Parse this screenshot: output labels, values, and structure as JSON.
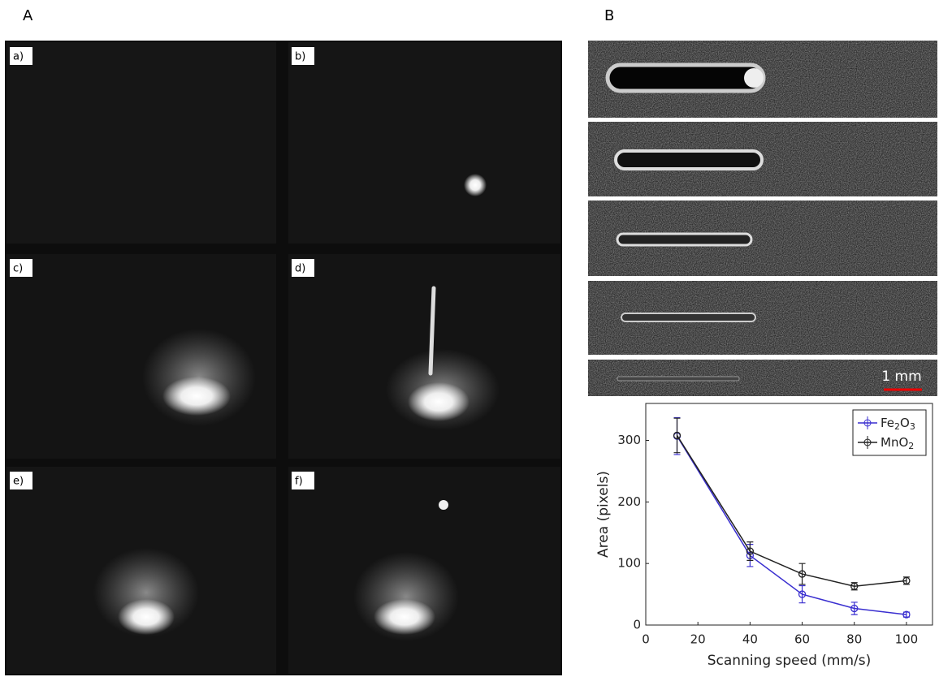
{
  "panel_labels": {
    "a": "A",
    "b": "B"
  },
  "photo_labels": [
    "a)",
    "b)",
    "c)",
    "d)",
    "e)",
    "f)"
  ],
  "scale_bar": "1 mm",
  "chart_data": {
    "type": "line",
    "x_label": "Scanning speed (mm/s)",
    "y_label": "Area (pixels)",
    "x": [
      12,
      40,
      60,
      80,
      100
    ],
    "series": [
      {
        "name": "Fe2O3",
        "color": "#3a2fd0",
        "values": [
          307,
          113,
          50,
          27,
          17
        ],
        "errors": [
          30,
          18,
          14,
          10,
          4
        ]
      },
      {
        "name": "MnO2",
        "color": "#222222",
        "values": [
          308,
          120,
          83,
          63,
          72
        ],
        "errors": [
          28,
          15,
          17,
          6,
          6
        ]
      }
    ],
    "xlim": [
      0,
      110
    ],
    "ylim": [
      0,
      360
    ],
    "xticks": [
      0,
      20,
      40,
      60,
      80,
      100
    ],
    "yticks": [
      0,
      100,
      200,
      300
    ],
    "legend": "upper right"
  }
}
